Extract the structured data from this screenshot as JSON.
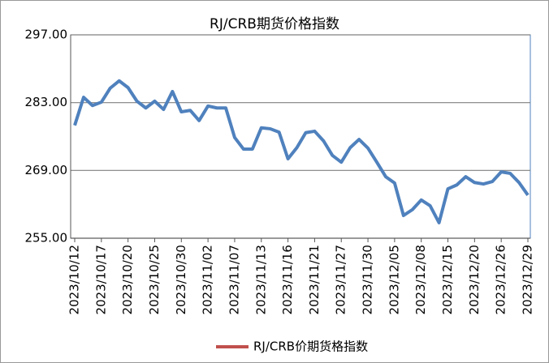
{
  "chart_data": {
    "type": "line",
    "title": "RJ/CRB期货价格指数",
    "categories": [
      "2023/10/12",
      null,
      null,
      "2023/10/17",
      null,
      null,
      "2023/10/20",
      null,
      null,
      "2023/10/25",
      null,
      null,
      "2023/10/30",
      null,
      null,
      "2023/11/02",
      null,
      null,
      "2023/11/07",
      null,
      null,
      "2023/11/13",
      null,
      null,
      "2023/11/16",
      null,
      null,
      "2023/11/21",
      null,
      null,
      "2023/11/27",
      null,
      null,
      "2023/11/30",
      null,
      null,
      "2023/12/05",
      null,
      null,
      "2023/12/08",
      null,
      null,
      "2023/12/15",
      null,
      null,
      "2023/12/20",
      null,
      null,
      "2023/12/26",
      null,
      null,
      "2023/12/29"
    ],
    "series": [
      {
        "name": "RJ/CRB价期货格指数",
        "color": "#4f81bd",
        "legend_color": "#c0504d",
        "values": [
          278.3,
          284.1,
          282.4,
          283.1,
          286.0,
          287.5,
          286.1,
          283.3,
          281.9,
          283.3,
          281.6,
          285.3,
          281.1,
          281.4,
          279.3,
          282.3,
          281.9,
          281.9,
          275.8,
          273.4,
          273.4,
          277.8,
          277.6,
          276.9,
          271.4,
          273.7,
          276.8,
          277.1,
          275.1,
          272.1,
          270.7,
          273.7,
          275.4,
          273.6,
          270.7,
          267.7,
          266.4,
          259.7,
          260.9,
          262.9,
          261.7,
          258.2,
          265.2,
          266.0,
          267.7,
          266.5,
          266.2,
          266.7,
          268.7,
          268.4,
          266.5,
          263.9
        ]
      }
    ],
    "ylim": [
      255,
      297
    ],
    "yticks": [
      {
        "value": 255,
        "label": "255.00"
      },
      {
        "value": 269,
        "label": "269.00"
      },
      {
        "value": 283,
        "label": "283.00"
      },
      {
        "value": 297,
        "label": "297.00"
      }
    ],
    "grid": true
  }
}
